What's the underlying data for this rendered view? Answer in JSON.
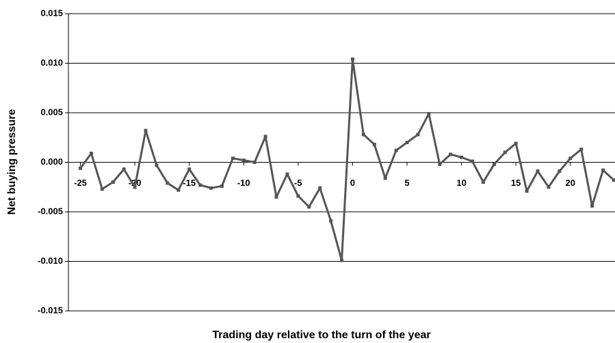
{
  "chart_data": {
    "type": "line",
    "x_label": "Trading day relative to the turn of the year",
    "y_label": "Net buying pressure",
    "x": [
      -25,
      -24,
      -23,
      -22,
      -21,
      -20,
      -19,
      -18,
      -17,
      -16,
      -15,
      -14,
      -13,
      -12,
      -11,
      -10,
      -9,
      -8,
      -7,
      -6,
      -5,
      -4,
      -3,
      -2,
      -1,
      0,
      1,
      2,
      3,
      4,
      5,
      6,
      7,
      8,
      9,
      10,
      11,
      12,
      13,
      14,
      15,
      16,
      17,
      18,
      19,
      20,
      21,
      22,
      23,
      24
    ],
    "series": [
      {
        "name": "Net buying pressure",
        "color": "#555555",
        "values": [
          -0.0006,
          0.0009,
          -0.0027,
          -0.002,
          -0.0007,
          -0.0025,
          0.0032,
          -0.0003,
          -0.0021,
          -0.0028,
          -0.0007,
          -0.0023,
          -0.0026,
          -0.0024,
          0.0004,
          0.0002,
          0.0,
          0.0026,
          -0.0035,
          -0.0012,
          -0.0034,
          -0.0045,
          -0.0026,
          -0.0059,
          -0.0099,
          0.0104,
          0.0028,
          0.0018,
          -0.0016,
          0.0012,
          0.002,
          0.0028,
          0.0049,
          -0.0002,
          0.0008,
          0.0005,
          0.0001,
          -0.002,
          -0.0002,
          0.001,
          0.0019,
          -0.0029,
          -0.0009,
          -0.0025,
          -0.0009,
          0.0004,
          0.0013,
          -0.0044,
          -0.0008,
          -0.0018
        ]
      }
    ],
    "xlim": [
      -26.1,
      24.1
    ],
    "xticks": [
      -25,
      -20,
      -15,
      -10,
      -5,
      0,
      5,
      10,
      15,
      20
    ],
    "ylim": [
      -0.015,
      0.015
    ],
    "yticks": [
      {
        "value": -0.015,
        "label": "-0.015"
      },
      {
        "value": -0.01,
        "label": "-0.010"
      },
      {
        "value": -0.005,
        "label": "-0.005"
      },
      {
        "value": 0,
        "label": "0.000"
      },
      {
        "value": 0.005,
        "label": "0.005"
      },
      {
        "value": 0.01,
        "label": "0.010"
      },
      {
        "value": 0.015,
        "label": "0.015"
      }
    ],
    "grid": true
  }
}
